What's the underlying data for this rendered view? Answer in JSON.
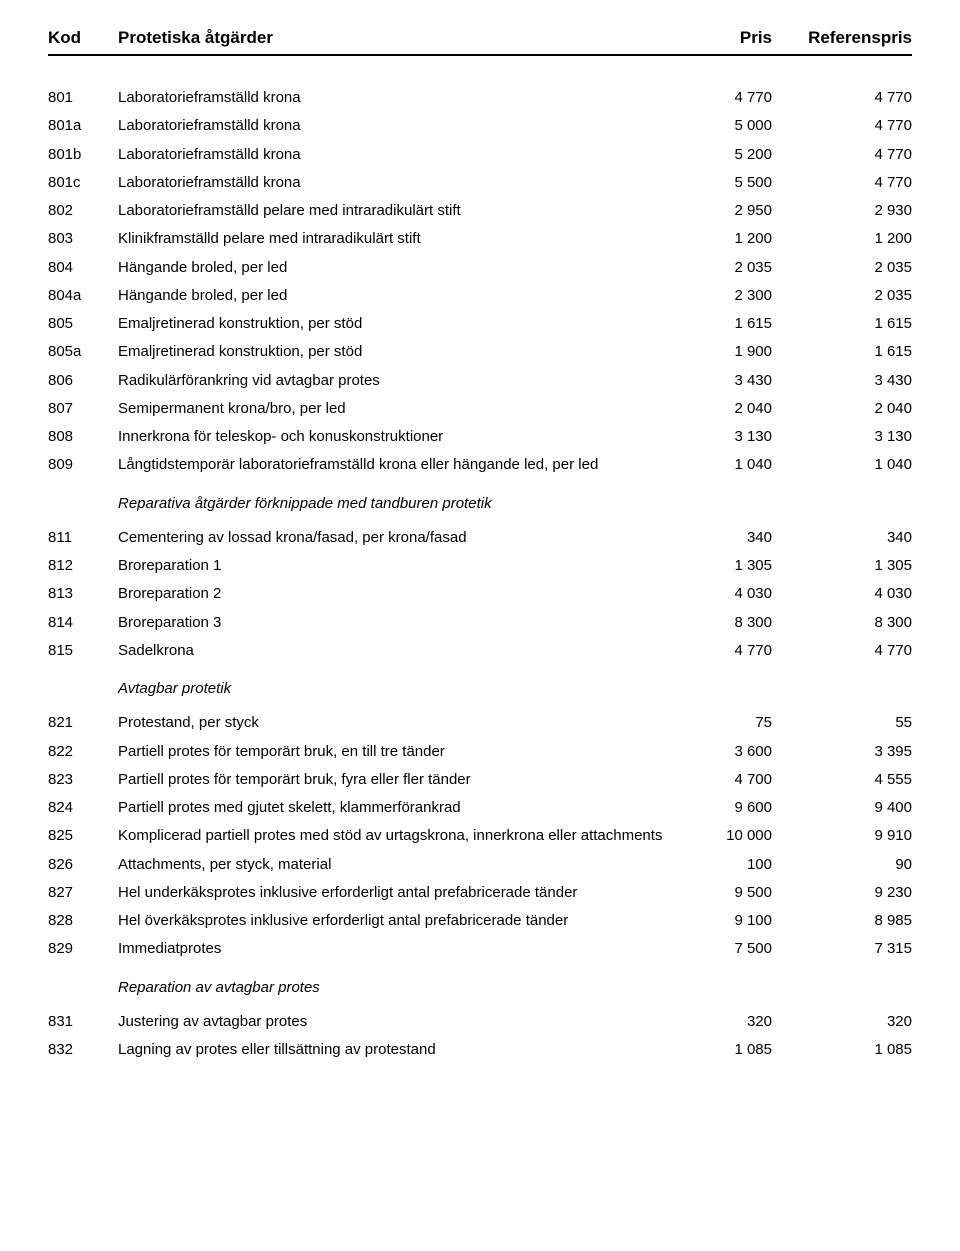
{
  "header": {
    "kod": "Kod",
    "desc": "Protetiska åtgärder",
    "pris": "Pris",
    "ref": "Referenspris"
  },
  "rows": [
    {
      "kod": "801",
      "desc": "Laboratorieframställd krona",
      "pris": "4 770",
      "ref": "4 770"
    },
    {
      "kod": "801a",
      "desc": "Laboratorieframställd krona",
      "pris": "5 000",
      "ref": "4 770"
    },
    {
      "kod": "801b",
      "desc": "Laboratorieframställd krona",
      "pris": "5 200",
      "ref": "4 770"
    },
    {
      "kod": "801c",
      "desc": "Laboratorieframställd krona",
      "pris": "5 500",
      "ref": "4 770"
    },
    {
      "kod": "802",
      "desc": "Laboratorieframställd pelare med intraradikulärt stift",
      "pris": "2 950",
      "ref": "2 930"
    },
    {
      "kod": "803",
      "desc": "Klinikframställd pelare med intraradikulärt stift",
      "pris": "1 200",
      "ref": "1 200"
    },
    {
      "kod": "804",
      "desc": "Hängande broled, per led",
      "pris": "2 035",
      "ref": "2 035"
    },
    {
      "kod": "804a",
      "desc": "Hängande broled, per led",
      "pris": "2 300",
      "ref": "2 035"
    },
    {
      "kod": "805",
      "desc": "Emaljretinerad konstruktion, per stöd",
      "pris": "1 615",
      "ref": "1 615"
    },
    {
      "kod": "805a",
      "desc": "Emaljretinerad konstruktion, per stöd",
      "pris": "1 900",
      "ref": "1 615"
    },
    {
      "kod": "806",
      "desc": "Radikulärförankring vid avtagbar protes",
      "pris": "3 430",
      "ref": "3 430"
    },
    {
      "kod": "807",
      "desc": "Semipermanent krona/bro, per led",
      "pris": "2 040",
      "ref": "2 040"
    },
    {
      "kod": "808",
      "desc": "Innerkrona för teleskop- och konuskonstruktioner",
      "pris": "3 130",
      "ref": "3 130"
    },
    {
      "kod": "809",
      "desc": "Långtidstemporär laboratorieframställd krona eller hängande led, per led",
      "pris": "1 040",
      "ref": "1 040"
    },
    {
      "section": true,
      "desc": "Reparativa åtgärder förknippade med tandburen protetik"
    },
    {
      "kod": "811",
      "desc": "Cementering av lossad krona/fasad, per krona/fasad",
      "pris": "340",
      "ref": "340"
    },
    {
      "kod": "812",
      "desc": "Broreparation 1",
      "pris": "1 305",
      "ref": "1 305"
    },
    {
      "kod": "813",
      "desc": "Broreparation 2",
      "pris": "4 030",
      "ref": "4 030"
    },
    {
      "kod": "814",
      "desc": "Broreparation 3",
      "pris": "8 300",
      "ref": "8 300"
    },
    {
      "kod": "815",
      "desc": "Sadelkrona",
      "pris": "4 770",
      "ref": "4 770"
    },
    {
      "section": true,
      "desc": "Avtagbar protetik"
    },
    {
      "kod": "821",
      "desc": "Protestand, per styck",
      "pris": "75",
      "ref": "55"
    },
    {
      "kod": "822",
      "desc": "Partiell protes för temporärt bruk, en till tre tänder",
      "pris": "3 600",
      "ref": "3 395"
    },
    {
      "kod": "823",
      "desc": "Partiell protes för temporärt bruk, fyra eller fler tänder",
      "pris": "4 700",
      "ref": "4 555"
    },
    {
      "kod": "824",
      "desc": "Partiell protes med gjutet skelett, klammerförankrad",
      "pris": "9 600",
      "ref": "9 400"
    },
    {
      "kod": "825",
      "desc": "Komplicerad partiell protes med stöd av urtagskrona, innerkrona eller attachments",
      "pris": "10 000",
      "ref": "9 910"
    },
    {
      "kod": "826",
      "desc": "Attachments, per styck, material",
      "pris": "100",
      "ref": "90"
    },
    {
      "kod": "827",
      "desc": "Hel underkäksprotes inklusive erforderligt antal prefabricerade tänder",
      "pris": "9 500",
      "ref": "9 230"
    },
    {
      "kod": "828",
      "desc": "Hel överkäksprotes inklusive erforderligt antal prefabricerade tänder",
      "pris": "9 100",
      "ref": "8 985"
    },
    {
      "kod": "829",
      "desc": "Immediatprotes",
      "pris": "7 500",
      "ref": "7 315"
    },
    {
      "section": true,
      "desc": "Reparation av avtagbar protes"
    },
    {
      "kod": "831",
      "desc": "Justering av avtagbar protes",
      "pris": "320",
      "ref": "320"
    },
    {
      "kod": "832",
      "desc": "Lagning av protes eller tillsättning av protestand",
      "pris": "1 085",
      "ref": "1 085"
    }
  ]
}
